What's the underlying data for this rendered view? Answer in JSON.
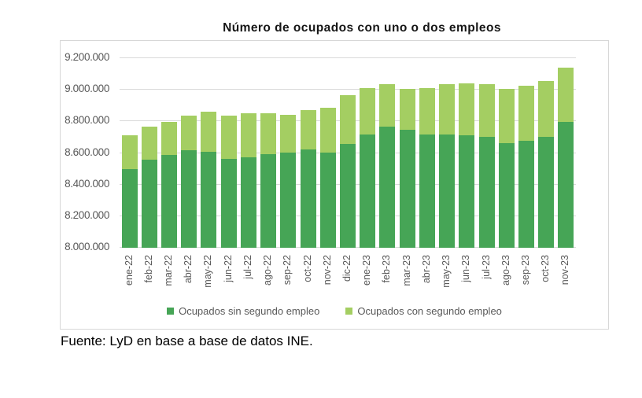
{
  "chart_data": {
    "type": "bar",
    "stacked": true,
    "title": "Número de ocupados con uno o dos empleos",
    "categories": [
      "ene-22",
      "feb-22",
      "mar-22",
      "abr-22",
      "may-22",
      "jun-22",
      "jul-22",
      "ago-22",
      "sep-22",
      "oct-22",
      "nov-22",
      "dic-22",
      "ene-23",
      "feb-23",
      "mar-23",
      "abr-23",
      "may-23",
      "jun-23",
      "jul-23",
      "ago-23",
      "sep-23",
      "oct-23",
      "nov-23"
    ],
    "series": [
      {
        "name": "Ocupados sin segundo empleo",
        "color": "#46a556",
        "values": [
          8496000,
          8555000,
          8585000,
          8616000,
          8607000,
          8561000,
          8571000,
          8589000,
          8598000,
          8622000,
          8601000,
          8656000,
          8717000,
          8764000,
          8744000,
          8713000,
          8717000,
          8711000,
          8699000,
          8660000,
          8674000,
          8701000,
          8793000
        ]
      },
      {
        "name": "Ocupados con segundo empleo",
        "color": "#a4ce62",
        "values": [
          214000,
          210000,
          210000,
          218000,
          251000,
          275000,
          279000,
          260000,
          239000,
          246000,
          284000,
          306000,
          293000,
          268000,
          261000,
          293000,
          318000,
          327000,
          334000,
          342000,
          351000,
          354000,
          345000
        ]
      }
    ],
    "ylim": [
      8000000,
      9200000
    ],
    "ytick_step": 200000,
    "ytick_labels": [
      "8.000.000",
      "8.200.000",
      "8.400.000",
      "8.600.000",
      "8.800.000",
      "9.000.000",
      "9.200.000"
    ],
    "grid": true,
    "legend_position": "bottom",
    "gridline_color": "#d9d9d9",
    "axis_label_color": "#595959",
    "frame_border_color": "#d7d7d7"
  },
  "source_note": "Fuente: LyD en base a base de datos INE."
}
